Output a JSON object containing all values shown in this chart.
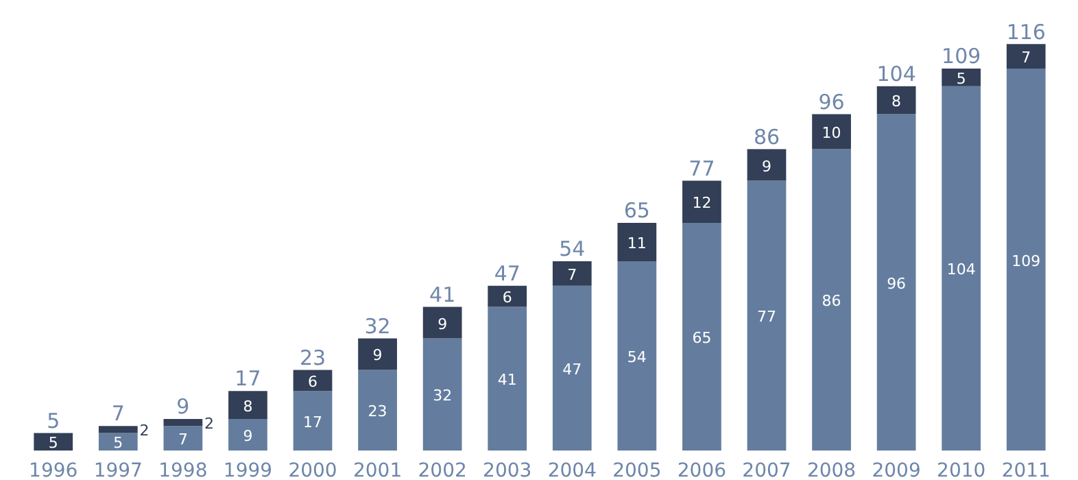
{
  "chart_data": {
    "type": "bar",
    "stacked": true,
    "categories": [
      "1996",
      "1997",
      "1998",
      "1999",
      "2000",
      "2001",
      "2002",
      "2003",
      "2004",
      "2005",
      "2006",
      "2007",
      "2008",
      "2009",
      "2010",
      "2011"
    ],
    "series": [
      {
        "color": "#647d9e",
        "values": [
          0,
          5,
          7,
          9,
          17,
          23,
          32,
          41,
          47,
          54,
          65,
          77,
          86,
          96,
          104,
          109
        ],
        "value_labels": [
          null,
          "5",
          "7",
          "9",
          "17",
          "23",
          "32",
          "41",
          "47",
          "54",
          "65",
          "77",
          "86",
          "96",
          "104",
          "109"
        ]
      },
      {
        "color": "#323f56",
        "values": [
          5,
          2,
          2,
          8,
          6,
          9,
          9,
          6,
          7,
          11,
          12,
          9,
          10,
          8,
          5,
          7
        ],
        "value_labels": [
          "5",
          "2",
          "2",
          "8",
          "6",
          "9",
          "9",
          "6",
          "7",
          "11",
          "12",
          "9",
          "10",
          "8",
          "5",
          "7"
        ]
      }
    ],
    "totals": [
      "5",
      "7",
      "9",
      "17",
      "23",
      "32",
      "41",
      "47",
      "54",
      "65",
      "77",
      "86",
      "96",
      "104",
      "109",
      "116"
    ],
    "grid": false
  }
}
